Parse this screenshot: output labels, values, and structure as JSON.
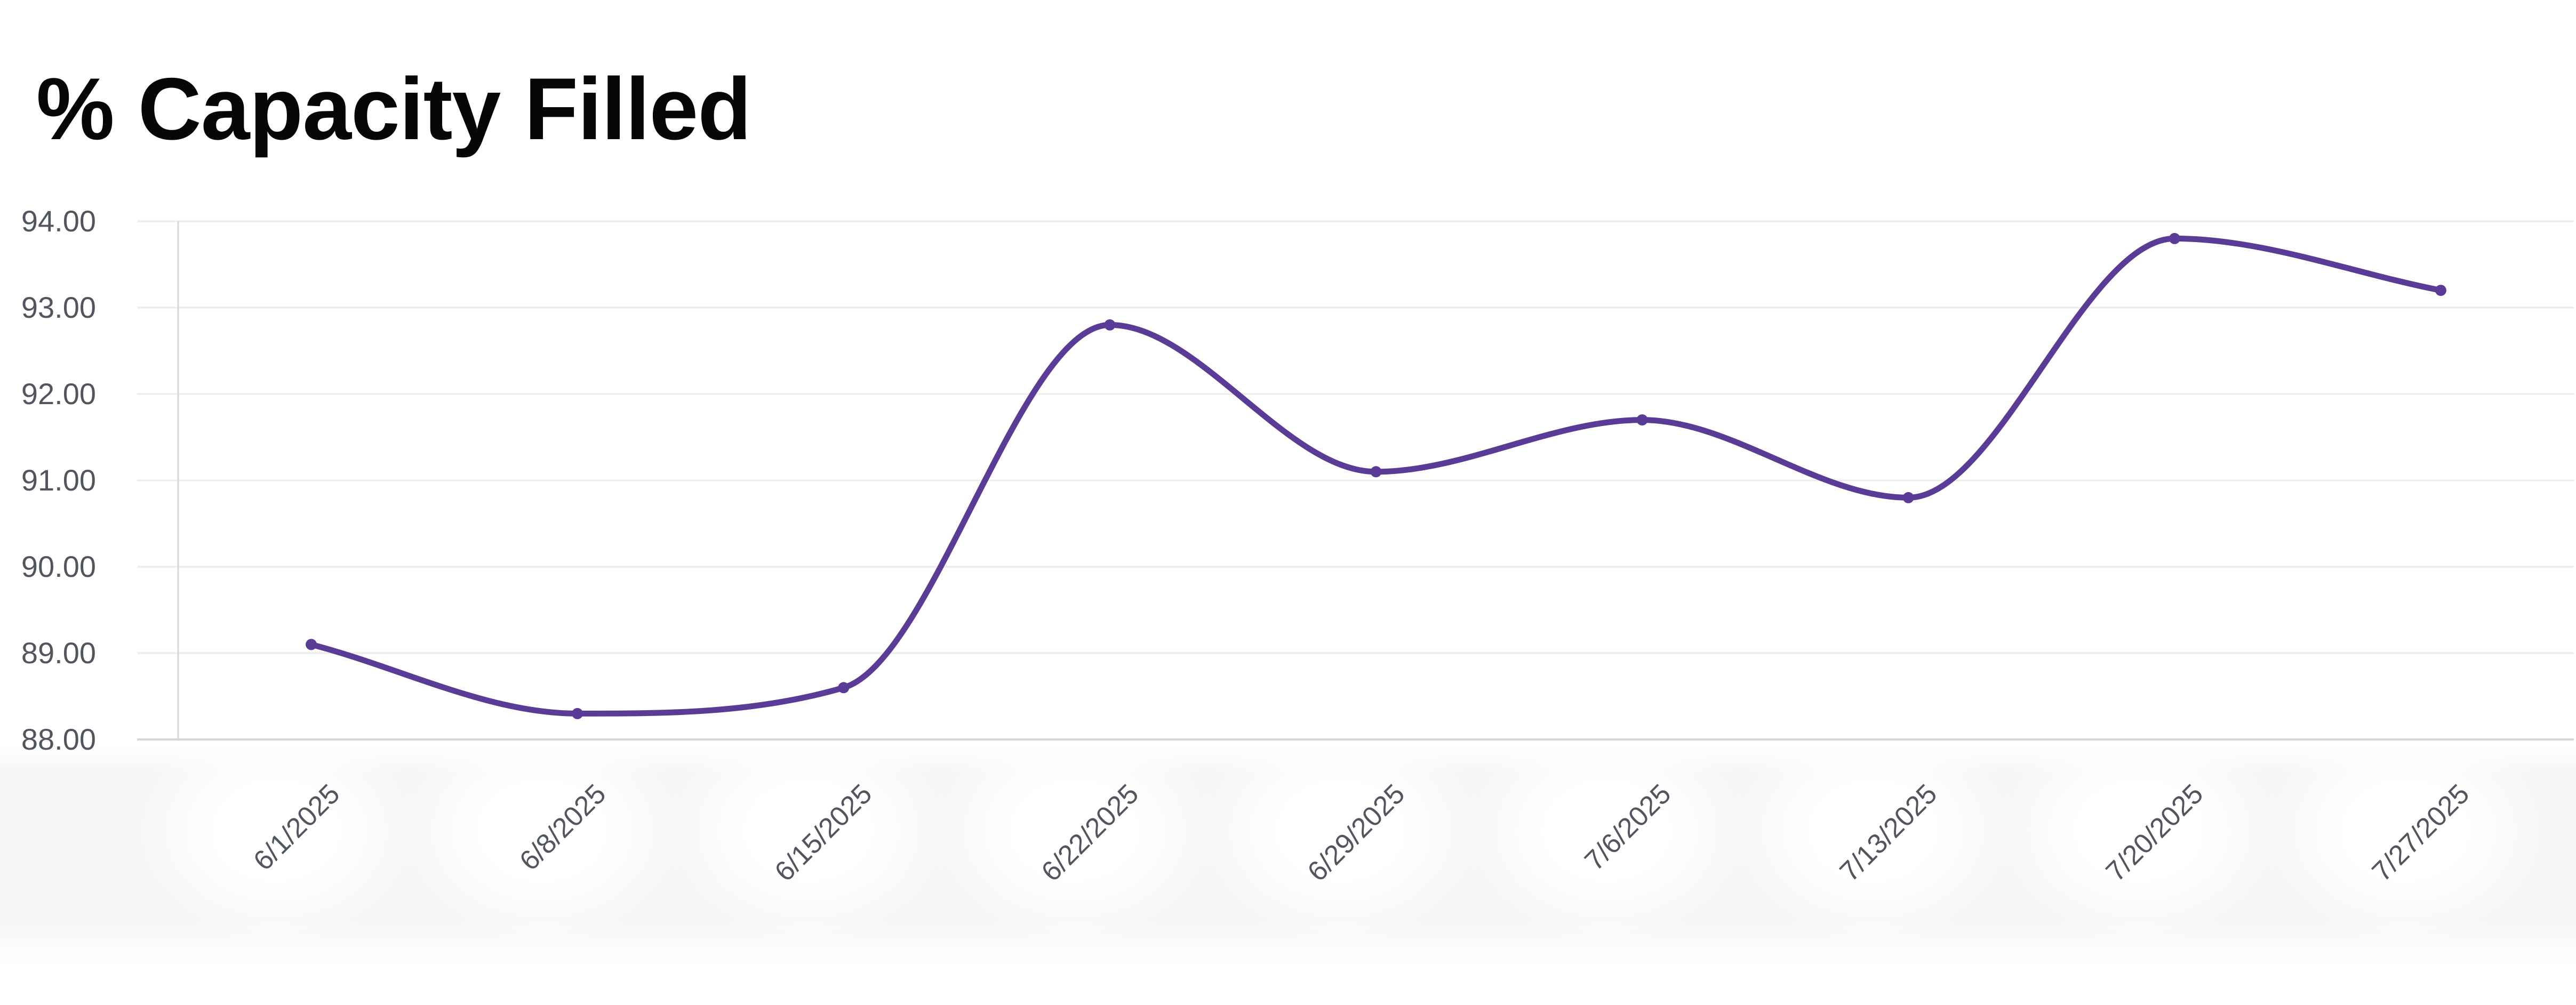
{
  "page": {
    "background": "#ffffff"
  },
  "title": {
    "text": "% Capacity Filled",
    "color": "#060606"
  },
  "chart_data": {
    "type": "line",
    "title": "% Capacity Filled",
    "categories": [
      "6/1/2025",
      "6/8/2025",
      "6/15/2025",
      "6/22/2025",
      "6/29/2025",
      "7/6/2025",
      "7/13/2025",
      "7/20/2025",
      "7/27/2025"
    ],
    "series": [
      {
        "name": "% Capacity Filled",
        "values": [
          89.1,
          88.3,
          88.6,
          92.8,
          91.1,
          91.7,
          90.8,
          93.8,
          93.2
        ],
        "color": "#5a3b96"
      }
    ],
    "curve": "monotone",
    "show_points": true,
    "xlabel": "",
    "ylabel": "",
    "ylim": [
      88,
      94
    ],
    "ytick_interval": 1,
    "ytick_labels": [
      "94.00",
      "93.00",
      "92.00",
      "91.00",
      "90.00",
      "89.00",
      "88.00"
    ],
    "xtick_rotation_deg": -45,
    "grid": "horizontal",
    "legend": "none"
  },
  "axis_style": {
    "tick_label_color": "#51565e",
    "gridline_color": "#ececec",
    "axis_line_color": "#d6d7d9",
    "halo_strip_color": "#f4f5f7"
  }
}
